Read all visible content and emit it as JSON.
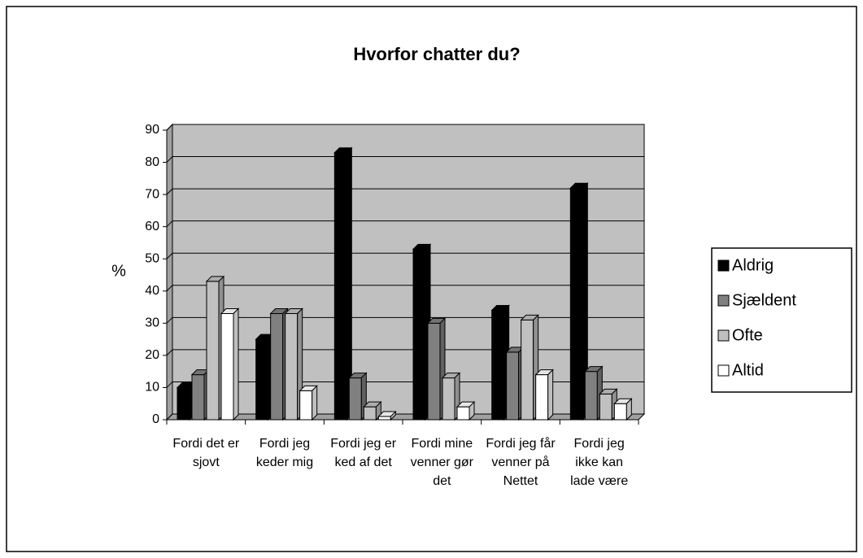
{
  "chart_data": {
    "type": "bar3d",
    "title": "Hvorfor chatter du?",
    "y_label": "%",
    "categories": [
      "Fordi det er sjovt",
      "Fordi jeg keder mig",
      "Fordi jeg er ked af det",
      "Fordi mine venner gør det",
      "Fordi jeg får venner på Nettet",
      "Fordi jeg ikke kan lade være"
    ],
    "series": [
      {
        "name": "Aldrig",
        "color": "#000000",
        "values": [
          10,
          25,
          83,
          53,
          34,
          72
        ]
      },
      {
        "name": "Sjældent",
        "color": "#808080",
        "values": [
          14,
          33,
          13,
          30,
          21,
          15
        ]
      },
      {
        "name": "Ofte",
        "color": "#c0c0c0",
        "values": [
          43,
          33,
          4,
          13,
          31,
          8
        ]
      },
      {
        "name": "Altid",
        "color": "#ffffff",
        "values": [
          33,
          9,
          1,
          4,
          14,
          5
        ]
      }
    ],
    "ylim": [
      0,
      90
    ],
    "yticks": [
      0,
      10,
      20,
      30,
      40,
      50,
      60,
      70,
      80,
      90
    ],
    "grid": true,
    "legend": "right",
    "plot_background": "#c0c0c0"
  }
}
